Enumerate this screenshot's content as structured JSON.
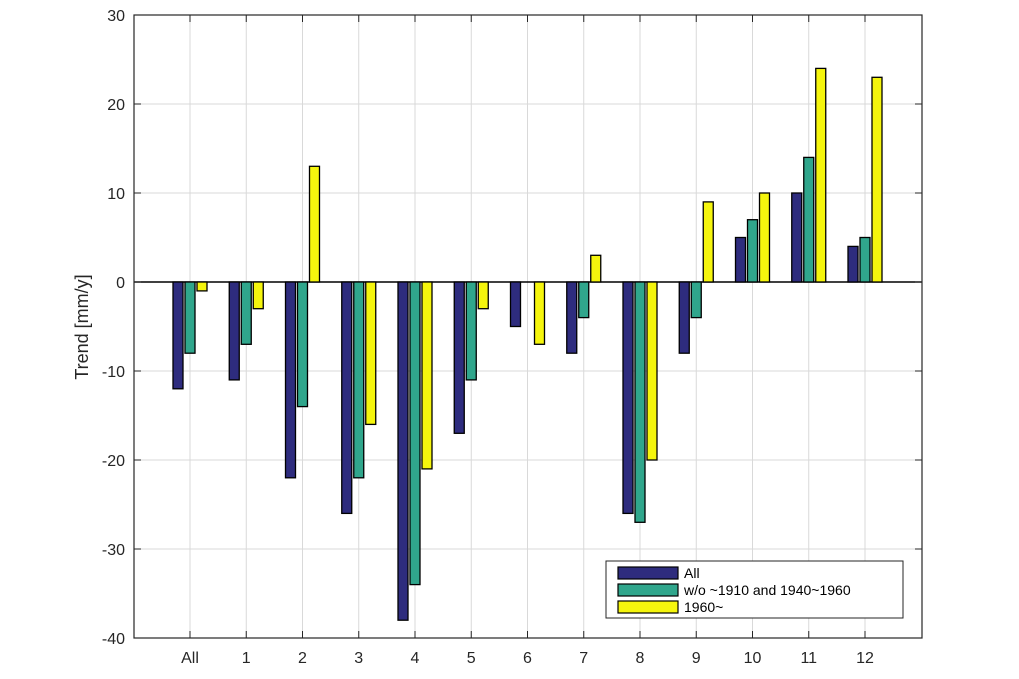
{
  "chart_data": {
    "type": "bar",
    "title": "",
    "xlabel": "",
    "ylabel": "Trend [mm/y]",
    "ylim": [
      -40,
      30
    ],
    "yticks": [
      "-40",
      "-30",
      "-20",
      "-10",
      "0",
      "10",
      "20",
      "30"
    ],
    "categories": [
      "All",
      "1",
      "2",
      "3",
      "4",
      "5",
      "6",
      "7",
      "8",
      "9",
      "10",
      "11",
      "12"
    ],
    "grid": true,
    "legend_position": "bottom-right",
    "series": [
      {
        "name": "All",
        "color": "#2e2c7e",
        "values": [
          -12,
          -11,
          -22,
          -26,
          -38,
          -17,
          -5,
          -8,
          -26,
          -8,
          5,
          10,
          4
        ]
      },
      {
        "name": "w/o ~1910 and 1940~1960",
        "color": "#30a68c",
        "values": [
          -8,
          -7,
          -14,
          -22,
          -34,
          -11,
          0,
          -4,
          -27,
          -4,
          7,
          14,
          5
        ]
      },
      {
        "name": "1960~",
        "color": "#f5f50d",
        "values": [
          -1,
          -3,
          13,
          -16,
          -21,
          -3,
          -7,
          3,
          -20,
          9,
          10,
          24,
          23
        ]
      }
    ]
  }
}
